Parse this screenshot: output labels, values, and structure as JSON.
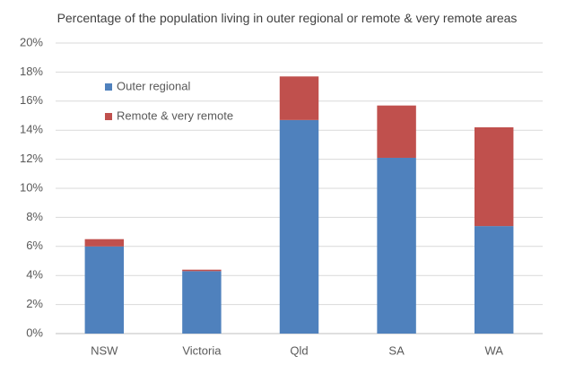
{
  "chart_data": {
    "type": "stacked_bar",
    "title": "Percentage of the population  living in outer regional or remote  & very remote areas",
    "categories": [
      "NSW",
      "Victoria",
      "Qld",
      "SA",
      "WA"
    ],
    "series": [
      {
        "name": "Outer regional",
        "color": "#4f81bd",
        "values": [
          6.0,
          4.3,
          14.7,
          12.1,
          7.4
        ]
      },
      {
        "name": "Remote & very remote",
        "color": "#c0504d",
        "values": [
          0.5,
          0.1,
          3.0,
          3.6,
          6.8
        ]
      }
    ],
    "ylim": [
      0,
      20
    ],
    "yticks": [
      {
        "value": 0,
        "label": "0%"
      },
      {
        "value": 2,
        "label": "2%"
      },
      {
        "value": 4,
        "label": "4%"
      },
      {
        "value": 6,
        "label": "6%"
      },
      {
        "value": 8,
        "label": "8%"
      },
      {
        "value": 10,
        "label": "10%"
      },
      {
        "value": 12,
        "label": "12%"
      },
      {
        "value": 14,
        "label": "14%"
      },
      {
        "value": 16,
        "label": "16%"
      },
      {
        "value": 18,
        "label": "18%"
      },
      {
        "value": 20,
        "label": "20%"
      }
    ],
    "grid": true,
    "legend": "upper left"
  }
}
